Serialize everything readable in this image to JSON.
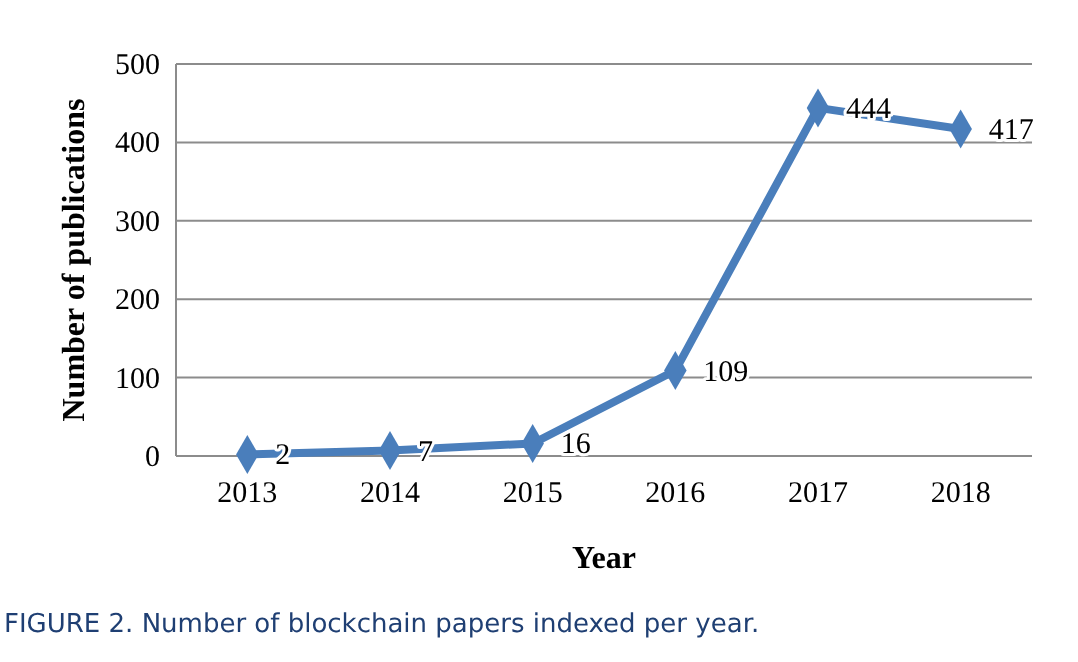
{
  "chart_data": {
    "type": "line",
    "title": "FIGURE 2. Number of blockchain papers indexed per year.",
    "xlabel": "Year",
    "ylabel": "Number of publications",
    "categories": [
      "2013",
      "2014",
      "2015",
      "2016",
      "2017",
      "2018"
    ],
    "series": [
      {
        "color": "#4a7ebb",
        "values": [
          2,
          7,
          16,
          109,
          444,
          417
        ]
      }
    ],
    "ylim": [
      0,
      500
    ],
    "yticks": [
      0,
      100,
      200,
      300,
      400,
      500
    ],
    "grid": "y",
    "marker": "diamond",
    "data_labels": true
  }
}
